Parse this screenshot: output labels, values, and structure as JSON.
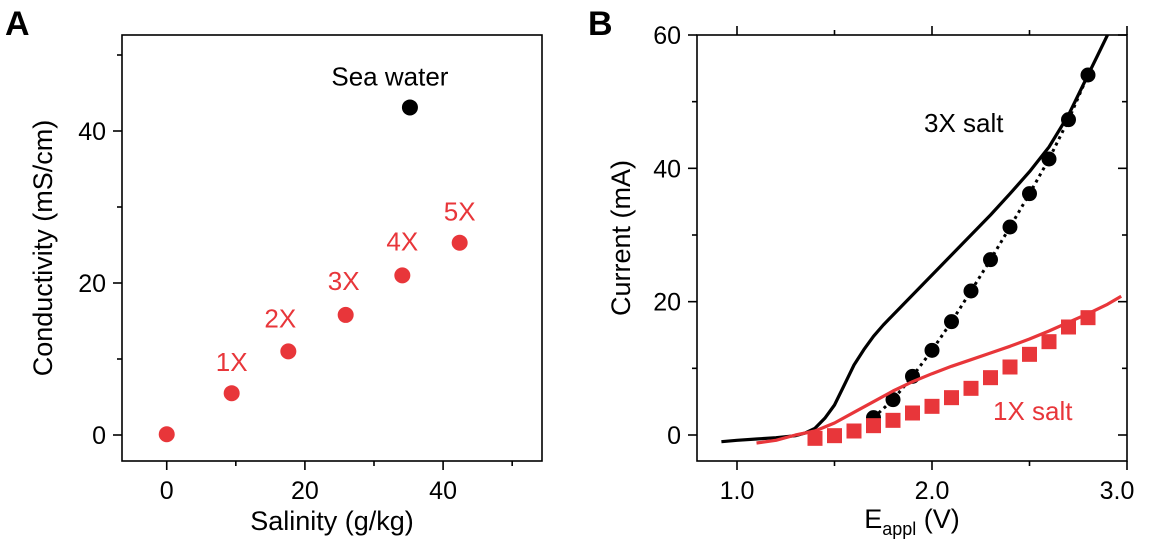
{
  "colors": {
    "red": "#e8363a",
    "black": "#000000"
  },
  "chart_data": [
    {
      "panel": "A",
      "type": "scatter",
      "xlabel": "Salinity (g/kg)",
      "ylabel": "Conductivity (mS/cm)",
      "xlim": [
        -3,
        52
      ],
      "ylim": [
        -3,
        51
      ],
      "xticks": [
        0,
        20,
        40
      ],
      "yticks": [
        0,
        20,
        40
      ],
      "xminor": [
        10,
        30,
        50
      ],
      "yminor": [
        10,
        30,
        50
      ],
      "grid": false,
      "series": [
        {
          "color": "#e8363a",
          "points": [
            {
              "x": 0,
              "y": 0.1,
              "label": ""
            },
            {
              "x": 9.4,
              "y": 5.5,
              "label": "1X"
            },
            {
              "x": 17.6,
              "y": 11.0,
              "label": "2X"
            },
            {
              "x": 25.9,
              "y": 15.8,
              "label": "3X"
            },
            {
              "x": 34.1,
              "y": 21.0,
              "label": "4X"
            },
            {
              "x": 42.4,
              "y": 25.3,
              "label": "5X"
            }
          ]
        },
        {
          "color": "#000000",
          "points": [
            {
              "x": 35.2,
              "y": 43.1,
              "label": "Sea water"
            }
          ]
        }
      ]
    },
    {
      "panel": "B",
      "type": "line",
      "xlabel": "E",
      "xlabel_sub": "appl",
      "xlabel_unit": " (V)",
      "ylabel": "Current (mA)",
      "xlim": [
        0.9,
        3.0
      ],
      "ylim": [
        -2,
        60
      ],
      "xticks": [
        1.0,
        2.0,
        3.0
      ],
      "xtick_labels": [
        "1.0",
        "2.0",
        "3.0"
      ],
      "yticks": [
        0,
        20,
        40,
        60
      ],
      "xminor": [
        1.5,
        2.5
      ],
      "yminor": [
        10,
        30,
        50
      ],
      "grid": false,
      "series": [
        {
          "name": "3X salt",
          "color": "#000000",
          "curve": [
            [
              0.92,
              -1.0
            ],
            [
              1.0,
              -0.8
            ],
            [
              1.1,
              -0.6
            ],
            [
              1.2,
              -0.4
            ],
            [
              1.3,
              -0.1
            ],
            [
              1.35,
              0.3
            ],
            [
              1.4,
              1.0
            ],
            [
              1.45,
              2.5
            ],
            [
              1.5,
              4.5
            ],
            [
              1.55,
              7.5
            ],
            [
              1.6,
              10.5
            ],
            [
              1.65,
              12.8
            ],
            [
              1.7,
              14.8
            ],
            [
              1.75,
              16.5
            ],
            [
              1.8,
              18.0
            ],
            [
              1.9,
              21.0
            ],
            [
              2.0,
              24.0
            ],
            [
              2.1,
              27.0
            ],
            [
              2.2,
              30.0
            ],
            [
              2.3,
              33.0
            ],
            [
              2.4,
              36.2
            ],
            [
              2.5,
              39.5
            ],
            [
              2.6,
              43.2
            ],
            [
              2.7,
              48.0
            ],
            [
              2.8,
              54.0
            ],
            [
              2.85,
              57.0
            ],
            [
              2.9,
              60.0
            ]
          ],
          "points": [
            [
              1.7,
              2.6
            ],
            [
              1.8,
              5.3
            ],
            [
              1.9,
              8.8
            ],
            [
              2.0,
              12.7
            ],
            [
              2.1,
              17.0
            ],
            [
              2.2,
              21.6
            ],
            [
              2.3,
              26.3
            ],
            [
              2.4,
              31.2
            ],
            [
              2.5,
              36.2
            ],
            [
              2.6,
              41.4
            ],
            [
              2.7,
              47.3
            ],
            [
              2.8,
              54.0
            ]
          ]
        },
        {
          "name": "1X salt",
          "color": "#e8363a",
          "curve": [
            [
              1.1,
              -1.2
            ],
            [
              1.2,
              -0.8
            ],
            [
              1.3,
              0.0
            ],
            [
              1.4,
              0.6
            ],
            [
              1.5,
              1.8
            ],
            [
              1.6,
              3.4
            ],
            [
              1.7,
              5.0
            ],
            [
              1.8,
              6.6
            ],
            [
              1.9,
              8.0
            ],
            [
              2.0,
              9.2
            ],
            [
              2.1,
              10.3
            ],
            [
              2.2,
              11.3
            ],
            [
              2.3,
              12.3
            ],
            [
              2.4,
              13.3
            ],
            [
              2.5,
              14.4
            ],
            [
              2.6,
              15.6
            ],
            [
              2.7,
              16.9
            ],
            [
              2.8,
              18.2
            ],
            [
              2.9,
              19.6
            ],
            [
              2.97,
              20.8
            ]
          ],
          "points": [
            [
              1.4,
              -0.5
            ],
            [
              1.5,
              -0.1
            ],
            [
              1.6,
              0.6
            ],
            [
              1.7,
              1.4
            ],
            [
              1.8,
              2.2
            ],
            [
              1.9,
              3.3
            ],
            [
              2.0,
              4.3
            ],
            [
              2.1,
              5.6
            ],
            [
              2.2,
              7.0
            ],
            [
              2.3,
              8.6
            ],
            [
              2.4,
              10.2
            ],
            [
              2.5,
              12.1
            ],
            [
              2.6,
              14.0
            ],
            [
              2.7,
              16.2
            ],
            [
              2.8,
              17.6
            ]
          ]
        }
      ]
    }
  ]
}
